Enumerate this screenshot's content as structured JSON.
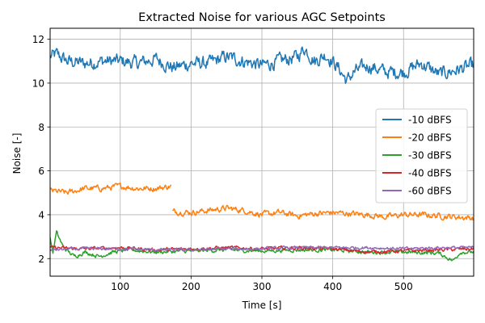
{
  "chart_data": {
    "type": "line",
    "title": "Extracted Noise for various AGC Setpoints",
    "xlabel": "Time [s]",
    "ylabel": "Noise [-]",
    "xlim": [
      1,
      599
    ],
    "ylim": [
      1.2,
      12.5
    ],
    "xticks": [
      100,
      200,
      300,
      400,
      500
    ],
    "yticks": [
      2,
      4,
      6,
      8,
      10,
      12
    ],
    "grid": true,
    "legend_position": "center-right",
    "series": [
      {
        "name": "-10 dBFS",
        "color": "#1f77b4",
        "segments": [
          {
            "x": [
              1,
              10,
              25,
              50,
              75,
              100,
              125,
              150,
              175,
              200,
              225,
              250,
              275,
              300,
              325,
              350,
              360,
              375,
              390,
              400,
              410,
              420,
              430,
              450,
              475,
              500,
              525,
              550,
              575,
              599
            ],
            "y": [
              11.2,
              11.3,
              11.0,
              10.9,
              11.0,
              11.0,
              10.9,
              11.1,
              10.7,
              10.9,
              10.9,
              11.2,
              11.0,
              10.8,
              11.0,
              11.2,
              11.6,
              11.0,
              11.3,
              11.0,
              10.6,
              10.1,
              10.5,
              10.8,
              10.5,
              10.5,
              10.9,
              10.4,
              10.6,
              10.8
            ]
          }
        ],
        "noise": 0.28
      },
      {
        "name": "-20 dBFS",
        "color": "#ff7f0e",
        "segments": [
          {
            "x": [
              1,
              25,
              50,
              75,
              100,
              125,
              150,
              172
            ],
            "y": [
              5.1,
              5.0,
              5.2,
              5.2,
              5.3,
              5.2,
              5.2,
              5.3
            ]
          },
          {
            "x": [
              174,
              200,
              225,
              250,
              275,
              300,
              325,
              350,
              375,
              400,
              425,
              450,
              475,
              500,
              525,
              550,
              575,
              599
            ],
            "y": [
              4.15,
              4.1,
              4.2,
              4.3,
              4.2,
              4.0,
              4.1,
              3.95,
              4.05,
              4.1,
              4.05,
              4.0,
              3.9,
              4.0,
              4.0,
              3.95,
              3.9,
              3.85
            ]
          }
        ],
        "noise": 0.12
      },
      {
        "name": "-30 dBFS",
        "color": "#2ca02c",
        "segments": [
          {
            "x": [
              1,
              5,
              10,
              20,
              35,
              50,
              70,
              90,
              110,
              150,
              200,
              250,
              300,
              350,
              400,
              450,
              500,
              550,
              570,
              580,
              599
            ],
            "y": [
              2.9,
              2.3,
              3.2,
              2.5,
              2.1,
              2.3,
              2.1,
              2.3,
              2.4,
              2.3,
              2.35,
              2.4,
              2.35,
              2.4,
              2.4,
              2.3,
              2.3,
              2.25,
              1.9,
              2.3,
              2.3
            ]
          }
        ],
        "noise": 0.08
      },
      {
        "name": "-40 dBFS",
        "color": "#d62728",
        "segments": [
          {
            "x": [
              1,
              50,
              100,
              150,
              200,
              250,
              300,
              350,
              400,
              450,
              500,
              550,
              599
            ],
            "y": [
              2.5,
              2.45,
              2.5,
              2.4,
              2.45,
              2.5,
              2.45,
              2.5,
              2.45,
              2.3,
              2.35,
              2.4,
              2.45
            ]
          }
        ],
        "noise": 0.07
      },
      {
        "name": "-60 dBFS",
        "color": "#9467bd",
        "segments": [
          {
            "x": [
              1,
              50,
              100,
              150,
              200,
              250,
              300,
              350,
              400,
              450,
              500,
              550,
              599
            ],
            "y": [
              2.4,
              2.45,
              2.45,
              2.4,
              2.4,
              2.45,
              2.45,
              2.5,
              2.5,
              2.5,
              2.45,
              2.5,
              2.5
            ]
          }
        ],
        "noise": 0.06
      }
    ]
  }
}
